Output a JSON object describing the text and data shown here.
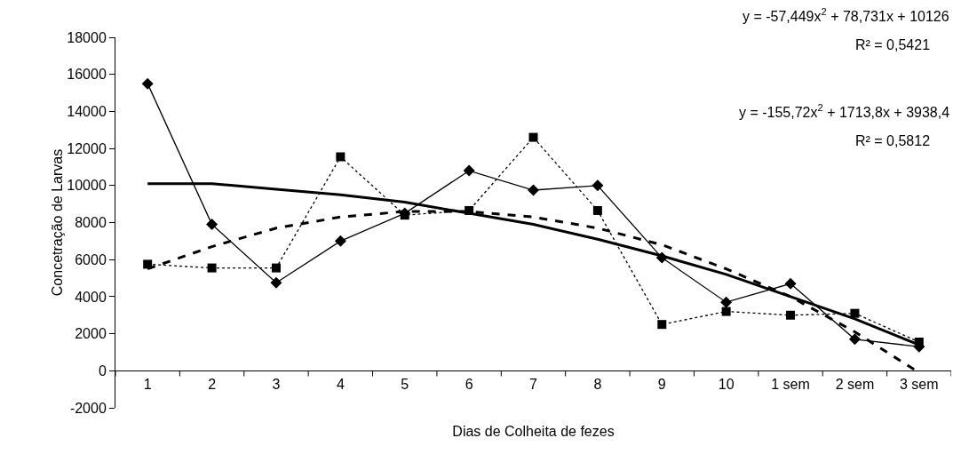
{
  "chart_data": {
    "type": "line",
    "xlabel": "Dias de Colheita de fezes",
    "ylabel": "Concetração de Larvas",
    "categories": [
      "1",
      "2",
      "3",
      "4",
      "5",
      "6",
      "7",
      "8",
      "9",
      "10",
      "1 sem",
      "2 sem",
      "3 sem"
    ],
    "series": [
      {
        "color": "#000000",
        "marker": "diamond",
        "line_style": "solid",
        "values": [
          15500,
          7900,
          4750,
          7000,
          8500,
          10800,
          9750,
          10000,
          6100,
          3700,
          4700,
          1700,
          1300
        ]
      },
      {
        "color": "#000000",
        "marker": "square",
        "line_style": "dotted",
        "values": [
          5750,
          5550,
          5550,
          11550,
          8400,
          8650,
          12600,
          8650,
          2500,
          3200,
          3000,
          3100,
          1550
        ]
      },
      {
        "color": "#000000",
        "marker": "none",
        "line_style": "solid",
        "values": [
          10100,
          10100,
          9800,
          9500,
          9100,
          8500,
          7900,
          7100,
          6200,
          5200,
          4000,
          2800,
          1400
        ]
      },
      {
        "color": "#000000",
        "marker": "none",
        "line_style": "dashed",
        "values": [
          5500,
          6700,
          7700,
          8300,
          8600,
          8600,
          8300,
          7700,
          6800,
          5500,
          4000,
          2100,
          -100
        ]
      }
    ],
    "ylim": [
      -2000,
      18000
    ],
    "yticks": [
      -2000,
      0,
      2000,
      4000,
      6000,
      8000,
      10000,
      12000,
      14000,
      16000,
      18000
    ],
    "grid": false,
    "annotations": [
      "y = -57,449x$^{2}$ + 78,731x + 10126",
      "R² = 0,5421",
      "y = -155,72x$^{2}$ + 1713,8x + 3938,4",
      "R² = 0,5812"
    ]
  }
}
